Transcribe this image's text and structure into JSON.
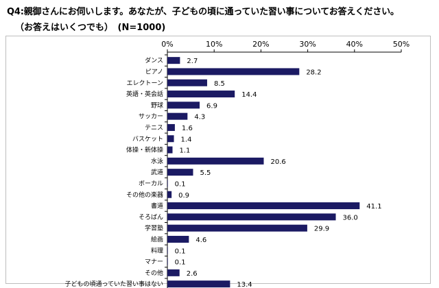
{
  "header": {
    "title": "Q4:親御さんにお伺いします。あなたが、子どもの頃に通っていた習い事についてお答えください。",
    "subtitle": "（お答えはいくつでも）　(N=1000)"
  },
  "colors": {
    "bar": "#1b1a63",
    "axis": "#000000",
    "frame": "#bdbdbd"
  },
  "chart_data": {
    "type": "bar",
    "orientation": "horizontal",
    "title": "",
    "xlabel": "",
    "ylabel": "",
    "xlim": [
      0,
      50
    ],
    "x_ticks": [
      "0%",
      "10%",
      "20%",
      "30%",
      "40%",
      "50%"
    ],
    "x_tick_values": [
      0,
      10,
      20,
      30,
      40,
      50
    ],
    "grid": false,
    "categories": [
      "ダンス",
      "ピアノ",
      "エレクトーン",
      "英語・英会話",
      "野球",
      "サッカー",
      "テニス",
      "バスケット",
      "体操・新体操",
      "水泳",
      "武道",
      "ボーカル",
      "その他の楽器",
      "書道",
      "そろばん",
      "学習塾",
      "絵画",
      "料理",
      "マナー",
      "その他",
      "子どもの頃通っていた習い事はない"
    ],
    "values": [
      2.7,
      28.2,
      8.5,
      14.4,
      6.9,
      4.3,
      1.6,
      1.4,
      1.1,
      20.6,
      5.5,
      0.1,
      0.9,
      41.1,
      36.0,
      29.9,
      4.6,
      0.1,
      0.1,
      2.6,
      13.4
    ],
    "value_labels": [
      "2.7",
      "28.2",
      "8.5",
      "14.4",
      "6.9",
      "4.3",
      "1.6",
      "1.4",
      "1.1",
      "20.6",
      "5.5",
      "0.1",
      "0.9",
      "41.1",
      "36.0",
      "29.9",
      "4.6",
      "0.1",
      "0.1",
      "2.6",
      "13.4"
    ]
  }
}
